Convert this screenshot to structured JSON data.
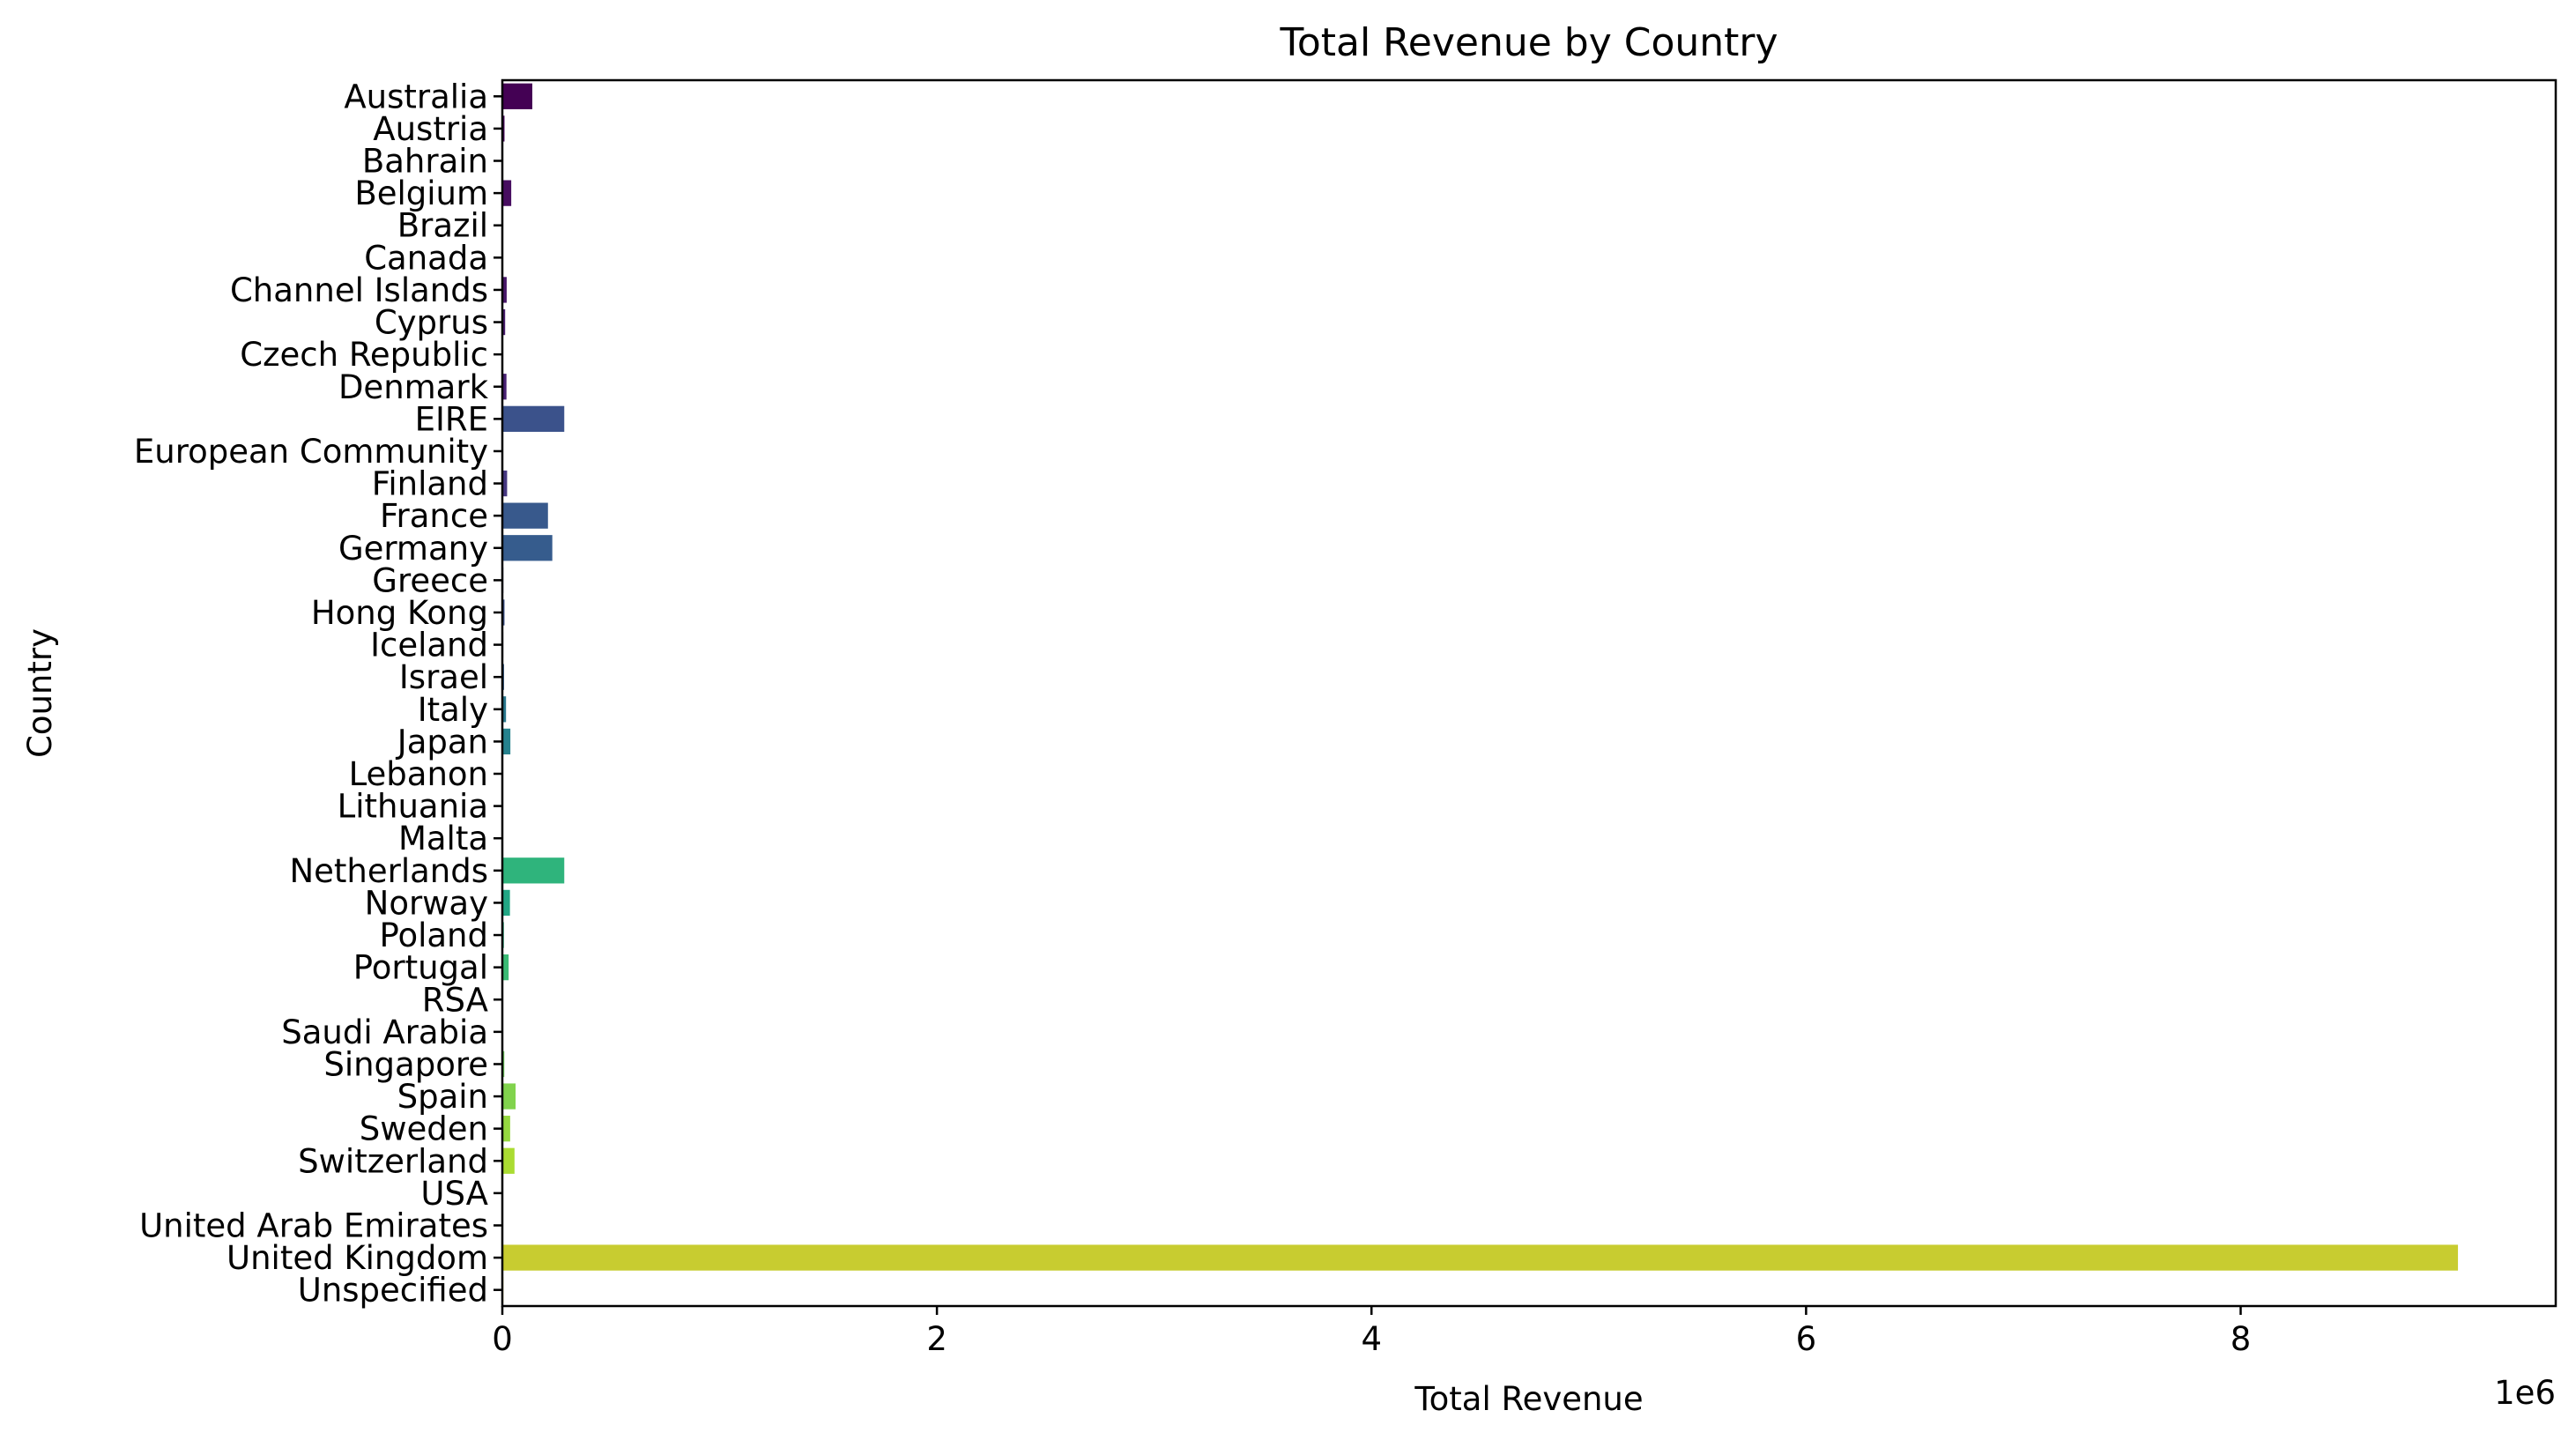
{
  "chart_data": {
    "type": "bar",
    "orientation": "horizontal",
    "title": "Total Revenue by Country",
    "xlabel": "Total Revenue",
    "ylabel": "Country",
    "x_offset_text": "1e6",
    "x_multiplier": 1000000,
    "xlim": [
      0,
      9450000
    ],
    "xticks": [
      0,
      2000000,
      4000000,
      6000000,
      8000000
    ],
    "xtick_labels": [
      "0",
      "2",
      "4",
      "6",
      "8"
    ],
    "grid": false,
    "legend": "none",
    "categories": [
      "Australia",
      "Austria",
      "Bahrain",
      "Belgium",
      "Brazil",
      "Canada",
      "Channel Islands",
      "Cyprus",
      "Czech Republic",
      "Denmark",
      "EIRE",
      "European Community",
      "Finland",
      "France",
      "Germany",
      "Greece",
      "Hong Kong",
      "Iceland",
      "Israel",
      "Italy",
      "Japan",
      "Lebanon",
      "Lithuania",
      "Malta",
      "Netherlands",
      "Norway",
      "Poland",
      "Portugal",
      "RSA",
      "Saudi Arabia",
      "Singapore",
      "Spain",
      "Sweden",
      "Switzerland",
      "USA",
      "United Arab Emirates",
      "United Kingdom",
      "Unspecified"
    ],
    "values": [
      138000,
      10000,
      550,
      41000,
      1100,
      3700,
      20000,
      13000,
      700,
      19000,
      285000,
      1300,
      22000,
      210000,
      230000,
      4700,
      10000,
      4300,
      7900,
      17000,
      37000,
      1700,
      1700,
      2500,
      285000,
      35000,
      7200,
      29000,
      1000,
      130,
      9100,
      61000,
      36000,
      56000,
      1700,
      1900,
      9000000,
      4700
    ],
    "colors": [
      "#440154",
      "#450559",
      "#46085c",
      "#470d60",
      "#471063",
      "#481467",
      "#481769",
      "#481b6d",
      "#481f70",
      "#482173",
      "#3b528b",
      "#46327e",
      "#453781",
      "#38598c",
      "#365c8d",
      "#3e4989",
      "#3b518b",
      "#3a548c",
      "#355f8d",
      "#2a788e",
      "#26828e",
      "#24868e",
      "#23898e",
      "#21918c",
      "#2fb47c",
      "#22a785",
      "#2ab07f",
      "#3bbb75",
      "#4ac16d",
      "#58c765",
      "#6ccd5a",
      "#81d34d",
      "#95d840",
      "#aadc32",
      "#bddf26",
      "#d2e21b",
      "#c8cc30",
      "#fde725"
    ]
  }
}
